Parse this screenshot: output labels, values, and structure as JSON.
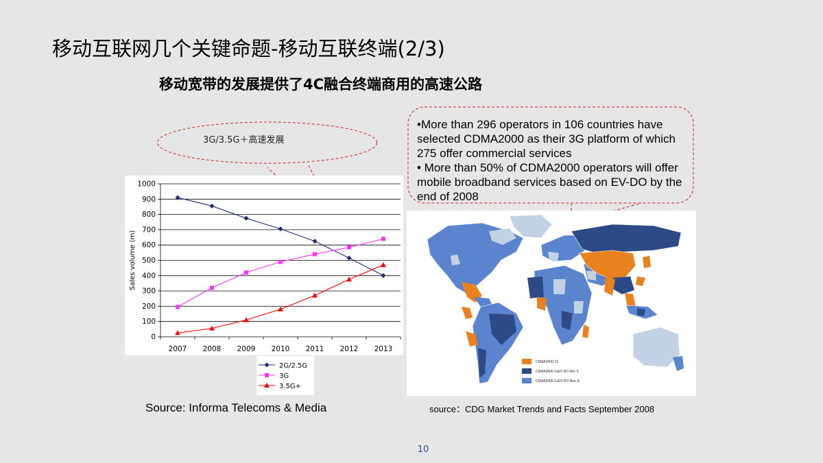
{
  "slide": {
    "title": "移动互联网几个关键命题-移动互联终端(2/3)",
    "subtitle": "移动宽带的发展提供了4C融合终端商用的高速公路",
    "page_number": "10"
  },
  "callouts": {
    "left_text": "3G/3.5G＋高速发展",
    "right_bullets": [
      "•More than 296 operators in 106 countries have selected CDMA2000 as their 3G platform of which 275 offer commercial services",
      "• More than 50% of CDMA2000 operators will offer mobile broadband services based on EV-DO by the end of 2008"
    ]
  },
  "sources": {
    "chart": "Source: Informa Telecoms & Media",
    "map": "source：CDG Market Trends and Facts September 2008"
  },
  "map": {
    "legend": [
      {
        "label": "CDMA2000 1X",
        "color": "#e9811f"
      },
      {
        "label": "CDMA2000 1xEV-DO Rel. 0",
        "color": "#2e4a86"
      },
      {
        "label": "CDMA2000 1xEV-DO Rev. A",
        "color": "#5b84cf"
      }
    ],
    "colors": {
      "other": "#c2d2e4",
      "ocean": "#ffffff"
    }
  },
  "chart_data": {
    "type": "line",
    "categories": [
      "2007",
      "2008",
      "2009",
      "2010",
      "2011",
      "2012",
      "2013"
    ],
    "ylabel": "Sales volume (m)",
    "xlabel": "",
    "ylim": [
      0,
      1000
    ],
    "yticks": [
      0,
      100,
      200,
      300,
      400,
      500,
      600,
      700,
      800,
      900,
      1000
    ],
    "grid": true,
    "legend_position": "bottom",
    "series": [
      {
        "name": "2G/2.5G",
        "color": "#1e2a7a",
        "marker": "diamond",
        "values": [
          910,
          855,
          775,
          705,
          625,
          515,
          400
        ]
      },
      {
        "name": "3G",
        "color": "#ff33ff",
        "marker": "square",
        "values": [
          195,
          320,
          420,
          490,
          540,
          585,
          640
        ]
      },
      {
        "name": "3.5G+",
        "color": "#ff0000",
        "marker": "triangle",
        "values": [
          25,
          55,
          110,
          180,
          270,
          375,
          470
        ]
      }
    ]
  }
}
